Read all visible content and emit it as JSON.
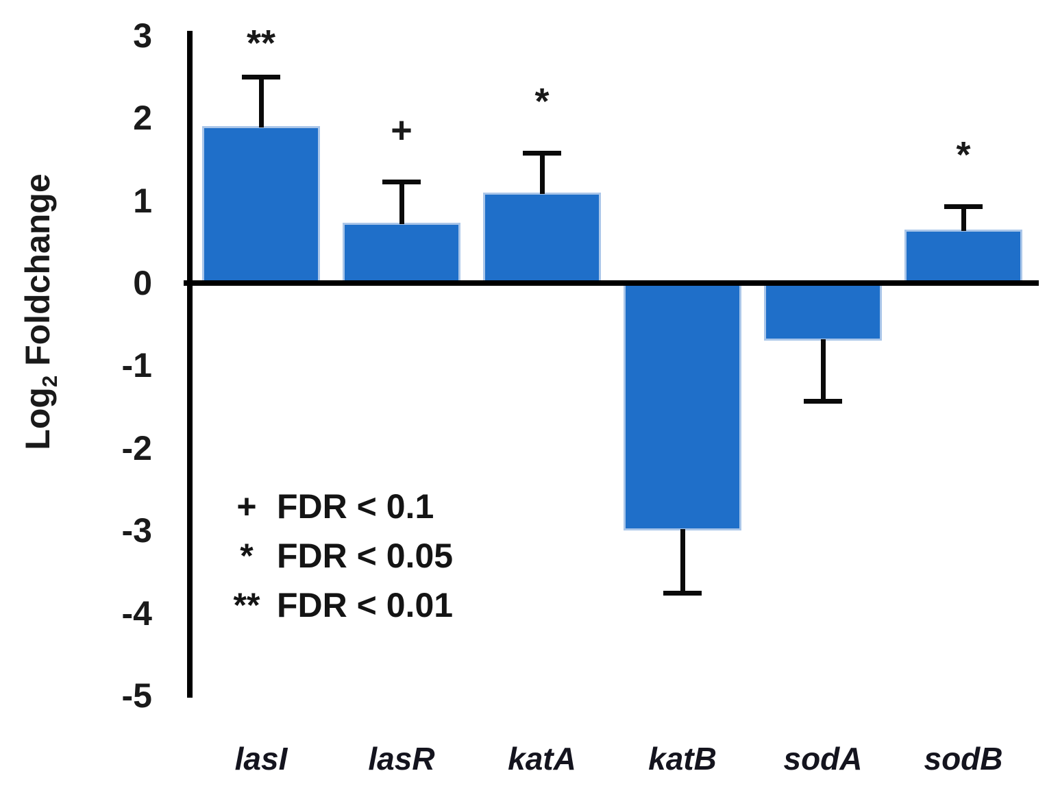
{
  "chart_data": {
    "type": "bar",
    "title": "",
    "xlabel": "",
    "ylabel": "Log₂ Foldchange",
    "ylabel_parts": {
      "prefix": "Log",
      "sub": "2",
      "suffix": " Foldchange"
    },
    "categories": [
      "lasI",
      "lasR",
      "katA",
      "katB",
      "sodA",
      "sodB"
    ],
    "values": [
      1.9,
      0.73,
      1.1,
      -3.0,
      -0.7,
      0.65
    ],
    "errors": [
      0.6,
      0.5,
      0.48,
      0.75,
      0.73,
      0.28
    ],
    "significance": [
      "**",
      "+",
      "*",
      "",
      "",
      "*"
    ],
    "yticks": [
      3,
      2,
      1,
      0,
      -1,
      -2,
      -3,
      -4,
      -5
    ],
    "ylim": [
      -5,
      3
    ],
    "grid": "off",
    "legend_position": "inside-lower-left",
    "legend": [
      {
        "marker": "+",
        "label": "FDR < 0.1"
      },
      {
        "marker": "*",
        "label": "FDR < 0.05"
      },
      {
        "marker": "**",
        "label": "FDR < 0.01"
      }
    ],
    "colors": {
      "bar_fill": "#1f6fc9",
      "bar_edge": "#aac6e9",
      "axis": "#000000",
      "error_bar": "#0a0a0a",
      "text": "#1a1a1a"
    }
  }
}
